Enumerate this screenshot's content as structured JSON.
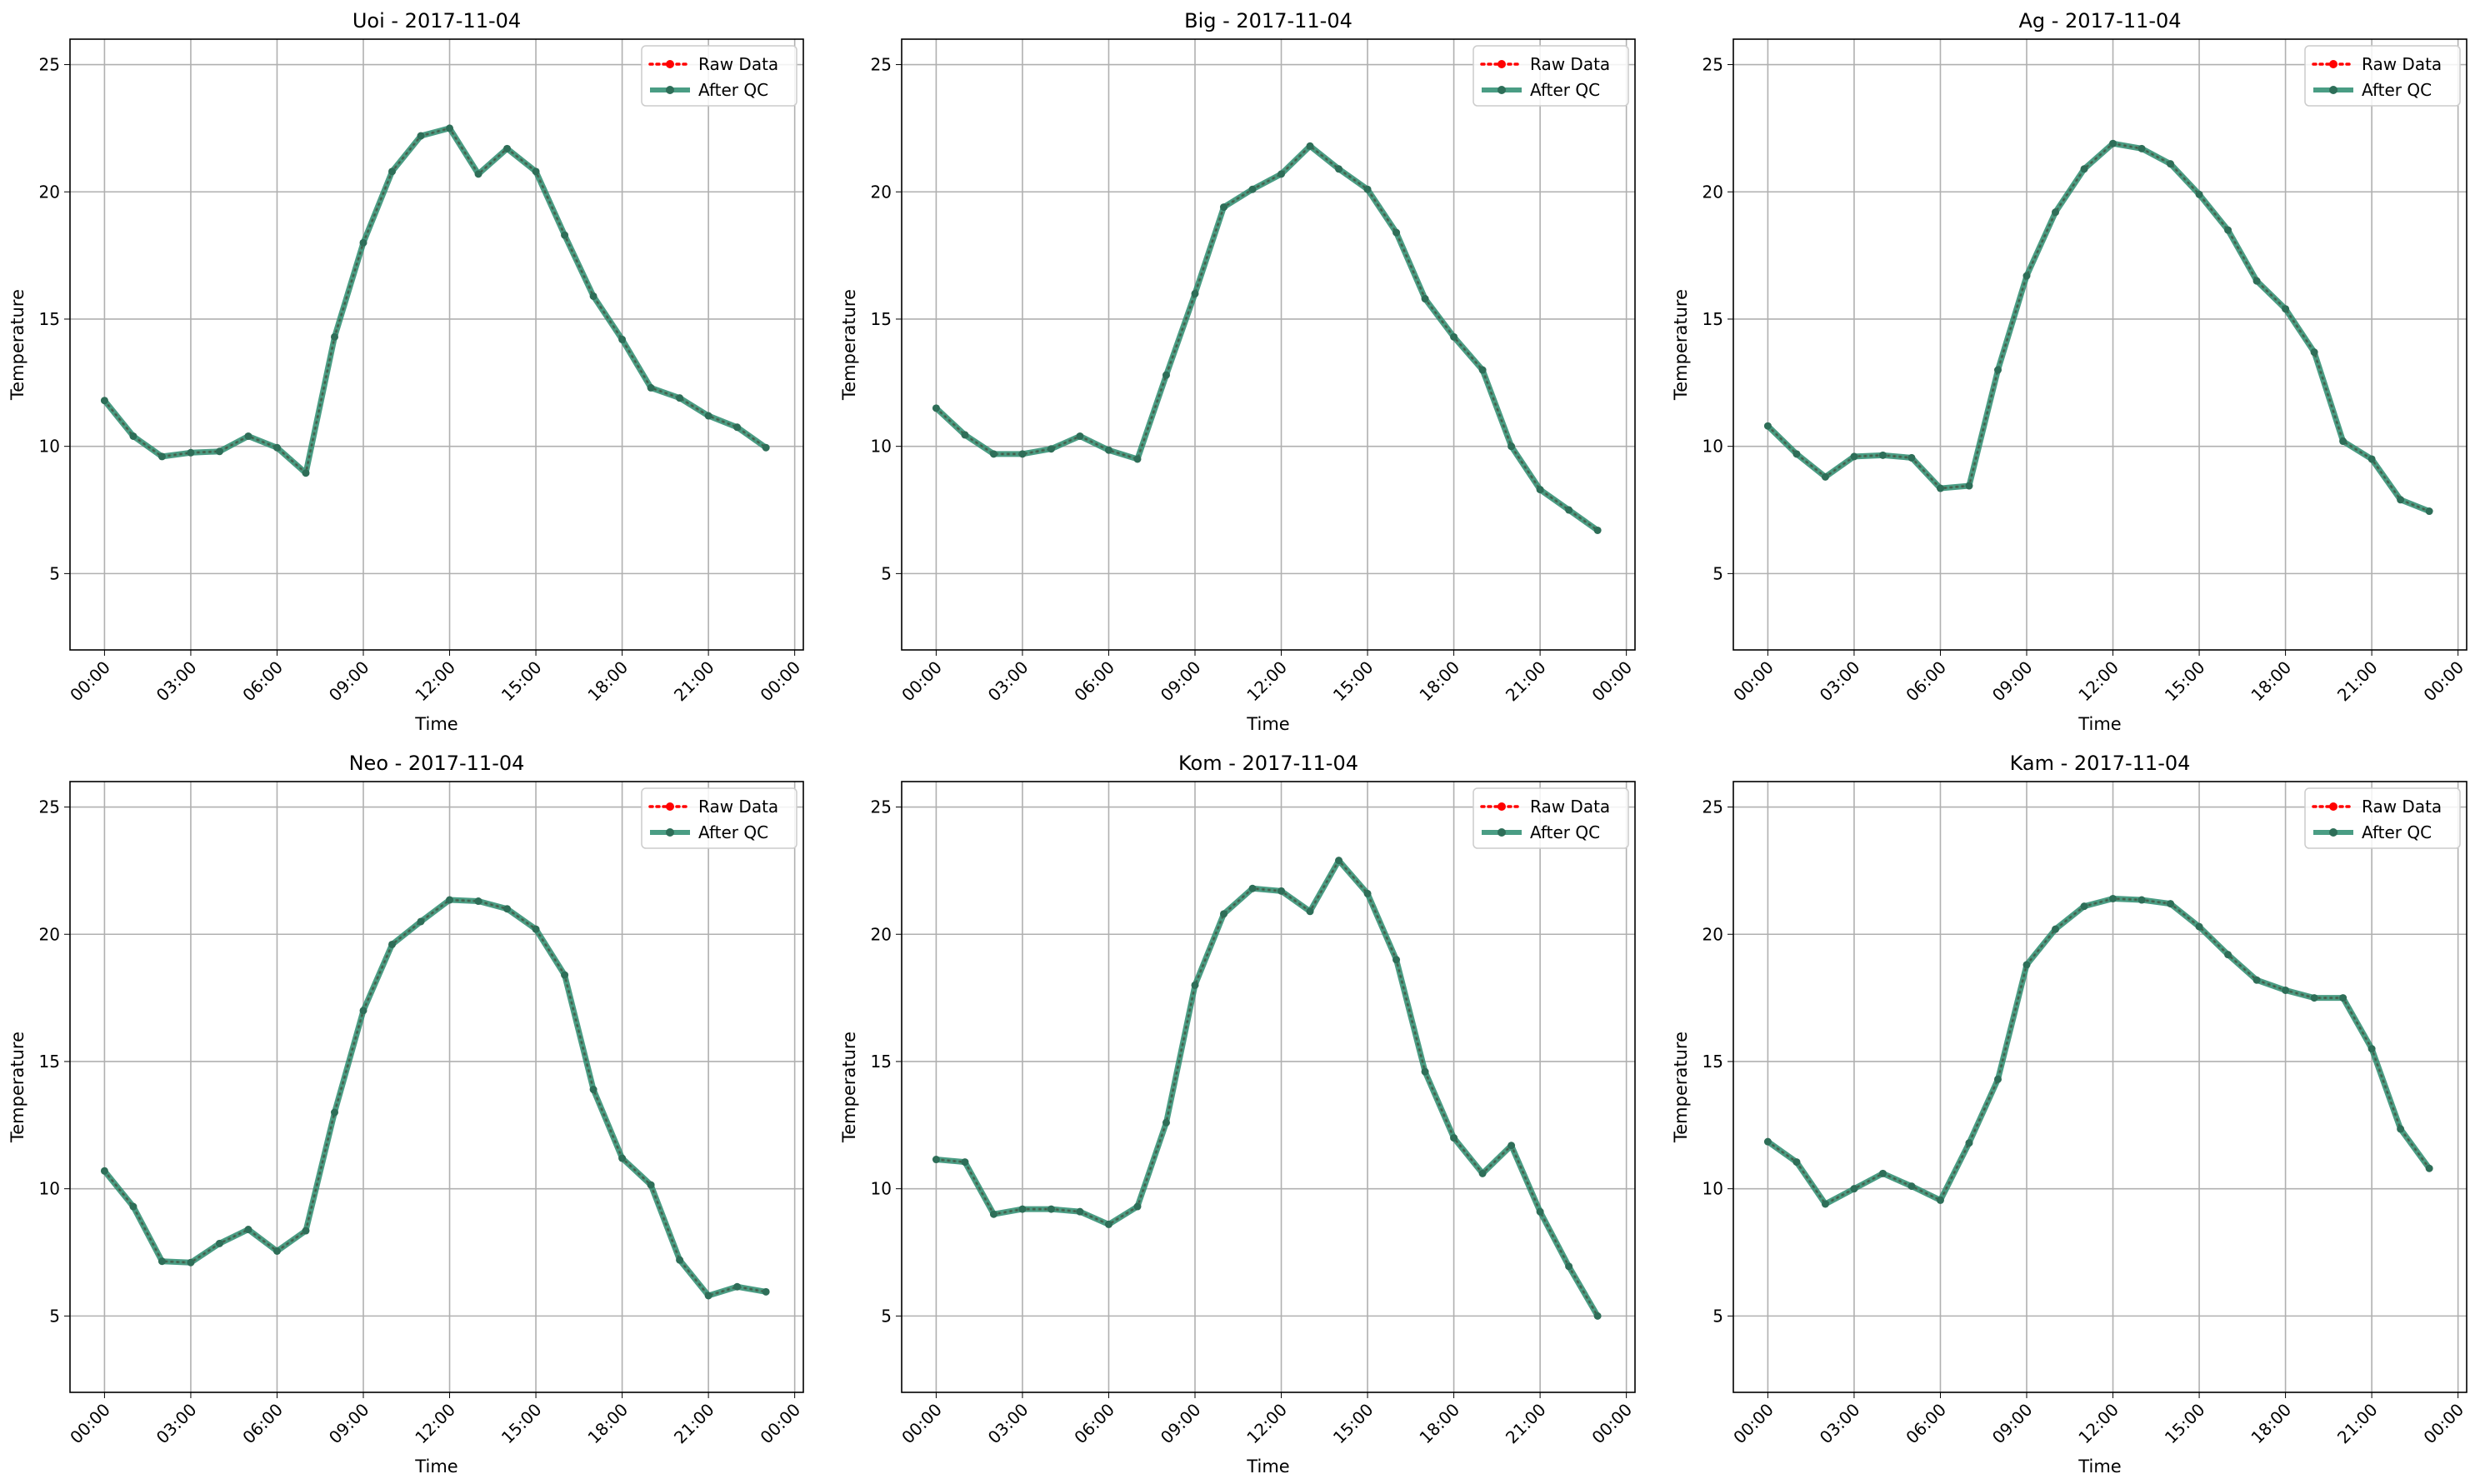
{
  "figure": {
    "xlabel": "Time",
    "ylabel": "Temperature",
    "legend": {
      "raw_label": "Raw Data",
      "qc_label": "After QC",
      "placement": "upper-right"
    },
    "colors": {
      "raw": "#ff0000",
      "qc": "#2a8c6e",
      "grid": "#b0b0b0",
      "axes": "#000000"
    }
  },
  "chart_data": [
    {
      "type": "line",
      "title": "Uoi - 2017-11-04",
      "xlabel": "Time",
      "ylabel": "Temperature",
      "x": [
        0,
        1,
        2,
        3,
        4,
        5,
        6,
        7,
        8,
        9,
        10,
        11,
        12,
        13,
        14,
        15,
        16,
        17,
        18,
        19,
        20,
        21,
        22,
        23
      ],
      "series": [
        {
          "name": "Raw Data",
          "values": [
            11.8,
            10.4,
            9.6,
            9.75,
            9.8,
            10.4,
            9.95,
            8.95,
            14.3,
            18.0,
            20.8,
            22.2,
            22.5,
            20.7,
            21.7,
            20.8,
            18.3,
            15.9,
            14.2,
            12.3,
            11.9,
            11.2,
            10.75,
            9.95
          ]
        },
        {
          "name": "After QC",
          "values": [
            11.8,
            10.4,
            9.6,
            9.75,
            9.8,
            10.4,
            9.95,
            8.95,
            14.3,
            18.0,
            20.8,
            22.2,
            22.5,
            20.7,
            21.7,
            20.8,
            18.3,
            15.9,
            14.2,
            12.3,
            11.9,
            11.2,
            10.75,
            9.95
          ]
        }
      ],
      "xlim": [
        -1.2,
        24.3
      ],
      "ylim": [
        2,
        26
      ],
      "xticks": [
        0,
        3,
        6,
        9,
        12,
        15,
        18,
        21,
        24
      ],
      "xtick_labels": [
        "00:00",
        "03:00",
        "06:00",
        "09:00",
        "12:00",
        "15:00",
        "18:00",
        "21:00",
        "00:00"
      ],
      "yticks": [
        5,
        10,
        15,
        20,
        25
      ],
      "ytick_labels": [
        "5",
        "10",
        "15",
        "20",
        "25"
      ],
      "grid": true,
      "legend": "upper-right"
    },
    {
      "type": "line",
      "title": "Big - 2017-11-04",
      "xlabel": "Time",
      "ylabel": "Temperature",
      "x": [
        0,
        1,
        2,
        3,
        4,
        5,
        6,
        7,
        8,
        9,
        10,
        11,
        12,
        13,
        14,
        15,
        16,
        17,
        18,
        19,
        20,
        21,
        22,
        23
      ],
      "series": [
        {
          "name": "Raw Data",
          "values": [
            11.5,
            10.45,
            9.7,
            9.7,
            9.9,
            10.4,
            9.85,
            9.5,
            12.8,
            16.0,
            19.4,
            20.1,
            20.7,
            21.8,
            20.9,
            20.1,
            18.4,
            15.8,
            14.3,
            13.0,
            10.0,
            8.3,
            7.5,
            6.7
          ]
        },
        {
          "name": "After QC",
          "values": [
            11.5,
            10.45,
            9.7,
            9.7,
            9.9,
            10.4,
            9.85,
            9.5,
            12.8,
            16.0,
            19.4,
            20.1,
            20.7,
            21.8,
            20.9,
            20.1,
            18.4,
            15.8,
            14.3,
            13.0,
            10.0,
            8.3,
            7.5,
            6.7
          ]
        }
      ],
      "xlim": [
        -1.2,
        24.3
      ],
      "ylim": [
        2,
        26
      ],
      "xticks": [
        0,
        3,
        6,
        9,
        12,
        15,
        18,
        21,
        24
      ],
      "xtick_labels": [
        "00:00",
        "03:00",
        "06:00",
        "09:00",
        "12:00",
        "15:00",
        "18:00",
        "21:00",
        "00:00"
      ],
      "yticks": [
        5,
        10,
        15,
        20,
        25
      ],
      "ytick_labels": [
        "5",
        "10",
        "15",
        "20",
        "25"
      ],
      "grid": true,
      "legend": "upper-right"
    },
    {
      "type": "line",
      "title": "Ag - 2017-11-04",
      "xlabel": "Time",
      "ylabel": "Temperature",
      "x": [
        0,
        1,
        2,
        3,
        4,
        5,
        6,
        7,
        8,
        9,
        10,
        11,
        12,
        13,
        14,
        15,
        16,
        17,
        18,
        19,
        20,
        21,
        22,
        23
      ],
      "series": [
        {
          "name": "Raw Data",
          "values": [
            10.8,
            9.7,
            8.8,
            9.6,
            9.65,
            9.55,
            8.35,
            8.45,
            13.0,
            16.7,
            19.2,
            20.9,
            21.9,
            21.7,
            21.1,
            19.9,
            18.5,
            16.5,
            15.4,
            13.7,
            10.2,
            9.5,
            7.9,
            7.45
          ]
        },
        {
          "name": "After QC",
          "values": [
            10.8,
            9.7,
            8.8,
            9.6,
            9.65,
            9.55,
            8.35,
            8.45,
            13.0,
            16.7,
            19.2,
            20.9,
            21.9,
            21.7,
            21.1,
            19.9,
            18.5,
            16.5,
            15.4,
            13.7,
            10.2,
            9.5,
            7.9,
            7.45
          ]
        }
      ],
      "xlim": [
        -1.2,
        24.3
      ],
      "ylim": [
        2,
        26
      ],
      "xticks": [
        0,
        3,
        6,
        9,
        12,
        15,
        18,
        21,
        24
      ],
      "xtick_labels": [
        "00:00",
        "03:00",
        "06:00",
        "09:00",
        "12:00",
        "15:00",
        "18:00",
        "21:00",
        "00:00"
      ],
      "yticks": [
        5,
        10,
        15,
        20,
        25
      ],
      "ytick_labels": [
        "5",
        "10",
        "15",
        "20",
        "25"
      ],
      "grid": true,
      "legend": "upper-right"
    },
    {
      "type": "line",
      "title": "Neo - 2017-11-04",
      "xlabel": "Time",
      "ylabel": "Temperature",
      "x": [
        0,
        1,
        2,
        3,
        4,
        5,
        6,
        7,
        8,
        9,
        10,
        11,
        12,
        13,
        14,
        15,
        16,
        17,
        18,
        19,
        20,
        21,
        22,
        23
      ],
      "series": [
        {
          "name": "Raw Data",
          "values": [
            10.7,
            9.3,
            7.15,
            7.1,
            7.85,
            8.4,
            7.55,
            8.35,
            13.0,
            17.0,
            19.6,
            20.5,
            21.35,
            21.3,
            21.0,
            20.2,
            18.4,
            13.9,
            11.2,
            10.15,
            7.2,
            5.8,
            6.15,
            5.95
          ]
        },
        {
          "name": "After QC",
          "values": [
            10.7,
            9.3,
            7.15,
            7.1,
            7.85,
            8.4,
            7.55,
            8.35,
            13.0,
            17.0,
            19.6,
            20.5,
            21.35,
            21.3,
            21.0,
            20.2,
            18.4,
            13.9,
            11.2,
            10.15,
            7.2,
            5.8,
            6.15,
            5.95
          ]
        }
      ],
      "xlim": [
        -1.2,
        24.3
      ],
      "ylim": [
        2,
        26
      ],
      "xticks": [
        0,
        3,
        6,
        9,
        12,
        15,
        18,
        21,
        24
      ],
      "xtick_labels": [
        "00:00",
        "03:00",
        "06:00",
        "09:00",
        "12:00",
        "15:00",
        "18:00",
        "21:00",
        "00:00"
      ],
      "yticks": [
        5,
        10,
        15,
        20,
        25
      ],
      "ytick_labels": [
        "5",
        "10",
        "15",
        "20",
        "25"
      ],
      "grid": true,
      "legend": "upper-right"
    },
    {
      "type": "line",
      "title": "Kom - 2017-11-04",
      "xlabel": "Time",
      "ylabel": "Temperature",
      "x": [
        0,
        1,
        2,
        3,
        4,
        5,
        6,
        7,
        8,
        9,
        10,
        11,
        12,
        13,
        14,
        15,
        16,
        17,
        18,
        19,
        20,
        21,
        22,
        23
      ],
      "series": [
        {
          "name": "Raw Data",
          "values": [
            11.15,
            11.05,
            9.0,
            9.2,
            9.2,
            9.1,
            8.6,
            9.3,
            12.6,
            18.0,
            20.8,
            21.8,
            21.7,
            20.9,
            22.9,
            21.6,
            19.0,
            14.6,
            12.0,
            10.6,
            11.7,
            9.1,
            6.95,
            5.0
          ]
        },
        {
          "name": "After QC",
          "values": [
            11.15,
            11.05,
            9.0,
            9.2,
            9.2,
            9.1,
            8.6,
            9.3,
            12.6,
            18.0,
            20.8,
            21.8,
            21.7,
            20.9,
            22.9,
            21.6,
            19.0,
            14.6,
            12.0,
            10.6,
            11.7,
            9.1,
            6.95,
            5.0
          ]
        }
      ],
      "xlim": [
        -1.2,
        24.3
      ],
      "ylim": [
        2,
        26
      ],
      "xticks": [
        0,
        3,
        6,
        9,
        12,
        15,
        18,
        21,
        24
      ],
      "xtick_labels": [
        "00:00",
        "03:00",
        "06:00",
        "09:00",
        "12:00",
        "15:00",
        "18:00",
        "21:00",
        "00:00"
      ],
      "yticks": [
        5,
        10,
        15,
        20,
        25
      ],
      "ytick_labels": [
        "5",
        "10",
        "15",
        "20",
        "25"
      ],
      "grid": true,
      "legend": "upper-right"
    },
    {
      "type": "line",
      "title": "Kam - 2017-11-04",
      "xlabel": "Time",
      "ylabel": "Temperature",
      "x": [
        0,
        1,
        2,
        3,
        4,
        5,
        6,
        7,
        8,
        9,
        10,
        11,
        12,
        13,
        14,
        15,
        16,
        17,
        18,
        19,
        20,
        21,
        22,
        23
      ],
      "series": [
        {
          "name": "Raw Data",
          "values": [
            11.85,
            11.05,
            9.4,
            10.0,
            10.6,
            10.1,
            9.55,
            11.8,
            14.3,
            18.8,
            20.2,
            21.1,
            21.4,
            21.35,
            21.2,
            20.3,
            19.2,
            18.2,
            17.8,
            17.5,
            17.5,
            15.5,
            12.35,
            10.8
          ]
        },
        {
          "name": "After QC",
          "values": [
            11.85,
            11.05,
            9.4,
            10.0,
            10.6,
            10.1,
            9.55,
            11.8,
            14.3,
            18.8,
            20.2,
            21.1,
            21.4,
            21.35,
            21.2,
            20.3,
            19.2,
            18.2,
            17.8,
            17.5,
            17.5,
            15.5,
            12.35,
            10.8
          ]
        }
      ],
      "xlim": [
        -1.2,
        24.3
      ],
      "ylim": [
        2,
        26
      ],
      "xticks": [
        0,
        3,
        6,
        9,
        12,
        15,
        18,
        21,
        24
      ],
      "xtick_labels": [
        "00:00",
        "03:00",
        "06:00",
        "09:00",
        "12:00",
        "15:00",
        "18:00",
        "21:00",
        "00:00"
      ],
      "yticks": [
        5,
        10,
        15,
        20,
        25
      ],
      "ytick_labels": [
        "5",
        "10",
        "15",
        "20",
        "25"
      ],
      "grid": true,
      "legend": "upper-right"
    }
  ]
}
